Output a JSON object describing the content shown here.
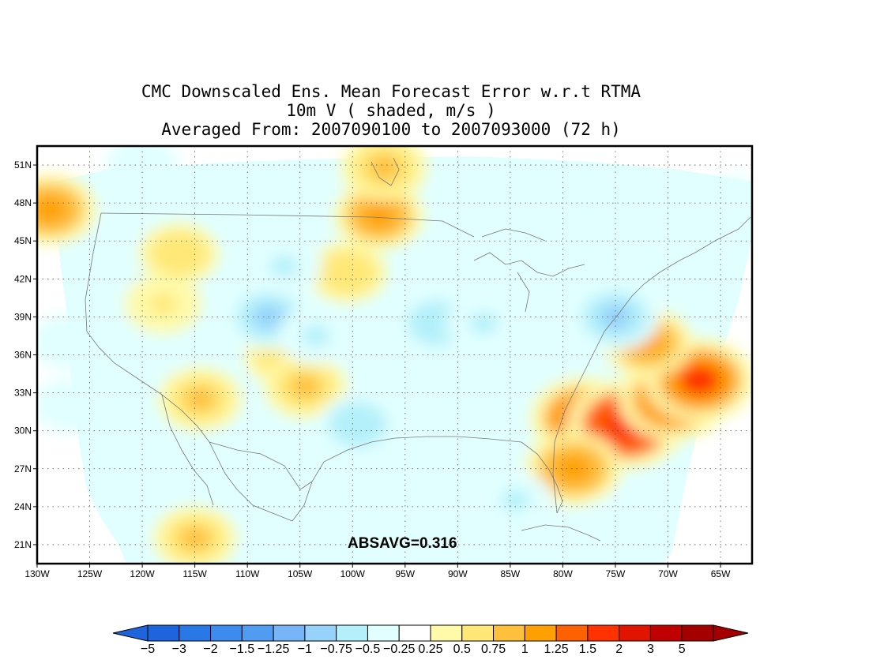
{
  "title": {
    "line1": "CMC Downscaled Ens. Mean Forecast Error w.r.t RTMA",
    "line2": "10m V ( shaded, m/s )",
    "line3": "Averaged From: 2007090100 to 2007093000 (72 h)"
  },
  "stat_label": "ABSAVG=0.316",
  "map": {
    "lon_range": [
      -130,
      -62
    ],
    "lat_range": [
      19.5,
      52.5
    ],
    "lat_ticks": [
      "51N",
      "48N",
      "45N",
      "42N",
      "39N",
      "36N",
      "33N",
      "30N",
      "27N",
      "24N",
      "21N"
    ],
    "lon_ticks": [
      "130W",
      "125W",
      "120W",
      "115W",
      "110W",
      "105W",
      "100W",
      "95W",
      "90W",
      "85W",
      "80W",
      "75W",
      "70W",
      "65W"
    ]
  },
  "colorbar": {
    "labels": [
      "-5",
      "-3",
      "-2",
      "-1.5",
      "-1.25",
      "-1",
      "-0.75",
      "-0.5",
      "-0.25",
      "0.25",
      "0.5",
      "0.75",
      "1",
      "1.25",
      "1.5",
      "2",
      "3",
      "5"
    ],
    "colors": [
      "#1e64dc",
      "#2878e6",
      "#3c8cf0",
      "#509cf0",
      "#78b4f8",
      "#96d2fa",
      "#b4f0fa",
      "#e1ffff",
      "#ffffff",
      "#fffaaa",
      "#ffe878",
      "#ffc03c",
      "#ffa000",
      "#ff6000",
      "#ff3200",
      "#e11400",
      "#c00000",
      "#a50000"
    ],
    "under_color": "#1e64dc",
    "over_color": "#a50000"
  },
  "field_features": [
    {
      "lon": -128.8,
      "lat": 47.5,
      "value": 1.1
    },
    {
      "lon": -116.5,
      "lat": 44.0,
      "value": 0.7
    },
    {
      "lon": -118.0,
      "lat": 40.0,
      "value": 0.6
    },
    {
      "lon": -114.5,
      "lat": 32.5,
      "value": 0.8
    },
    {
      "lon": -106.5,
      "lat": 36.0,
      "value": 0.7
    },
    {
      "lon": -104.5,
      "lat": 33.5,
      "value": 0.8
    },
    {
      "lon": -100.5,
      "lat": 42.5,
      "value": 0.7
    },
    {
      "lon": -97.5,
      "lat": 47.0,
      "value": 1.0
    },
    {
      "lon": -97.0,
      "lat": 50.8,
      "value": 0.9
    },
    {
      "lon": -115.0,
      "lat": 21.5,
      "value": 0.8
    },
    {
      "lon": -78.0,
      "lat": 31.0,
      "value": 1.5
    },
    {
      "lon": -74.0,
      "lat": 30.5,
      "value": 1.8
    },
    {
      "lon": -69.5,
      "lat": 32.5,
      "value": 1.6
    },
    {
      "lon": -67.0,
      "lat": 34.0,
      "value": 1.6
    },
    {
      "lon": -72.0,
      "lat": 37.0,
      "value": 1.0
    },
    {
      "lon": -79.0,
      "lat": 27.0,
      "value": 1.2
    },
    {
      "lon": -108.0,
      "lat": 39.0,
      "value": -0.9
    },
    {
      "lon": -106.5,
      "lat": 43.0,
      "value": -0.6
    },
    {
      "lon": -103.5,
      "lat": 37.5,
      "value": -0.6
    },
    {
      "lon": -99.5,
      "lat": 30.5,
      "value": -0.7
    },
    {
      "lon": -92.0,
      "lat": 38.5,
      "value": -0.7
    },
    {
      "lon": -87.5,
      "lat": 38.5,
      "value": -0.6
    },
    {
      "lon": -75.0,
      "lat": 39.0,
      "value": -1.0
    },
    {
      "lon": -127.0,
      "lat": 37.0,
      "value": -0.5
    },
    {
      "lon": -127.0,
      "lat": 32.0,
      "value": -0.4
    },
    {
      "lon": -84.5,
      "lat": 24.5,
      "value": -0.6
    },
    {
      "lon": -74.0,
      "lat": 23.0,
      "value": -0.5
    },
    {
      "lon": -120.0,
      "lat": 51.0,
      "value": -0.5
    },
    {
      "lon": -64.0,
      "lat": 48.0,
      "value": -0.4
    }
  ]
}
